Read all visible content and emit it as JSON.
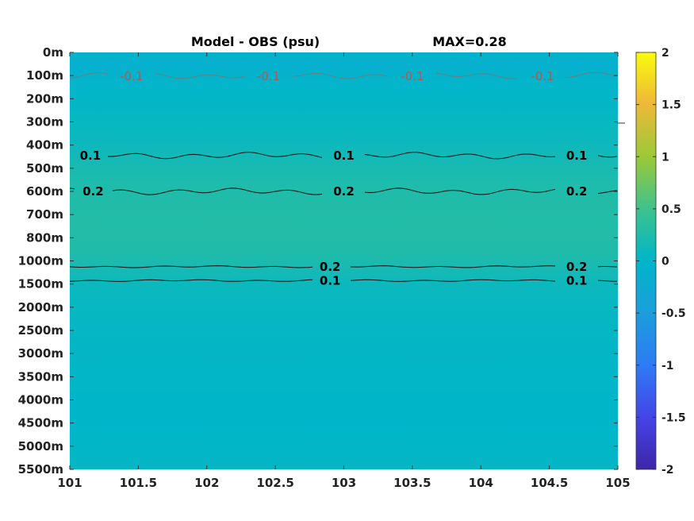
{
  "chart_data": {
    "type": "heatmap",
    "title": "Model - OBS (psu)",
    "subtitle": "MAX=0.28",
    "x": {
      "ticks": [
        101,
        101.5,
        102,
        102.5,
        103,
        103.5,
        104,
        104.5,
        105
      ],
      "tick_labels": [
        "101",
        "101.5",
        "102",
        "102.5",
        "103",
        "103.5",
        "104",
        "104.5",
        "105"
      ],
      "range": [
        101,
        105
      ]
    },
    "y": {
      "tick_labels": [
        "0m",
        "100m",
        "200m",
        "300m",
        "400m",
        "500m",
        "600m",
        "700m",
        "800m",
        "1000m",
        "1500m",
        "2000m",
        "2500m",
        "3000m",
        "3500m",
        "4000m",
        "4500m",
        "5000m",
        "5500m"
      ],
      "reversed": true
    },
    "colorbar": {
      "range": [
        -2,
        2
      ],
      "ticks": [
        2,
        1.5,
        1,
        0.5,
        0,
        -0.5,
        -1,
        -1.5,
        -2
      ],
      "tick_labels": [
        "2",
        "1.5",
        "1",
        "0.5",
        "0",
        "-0.5",
        "-1",
        "-1.5",
        "-2"
      ],
      "colormap": "parula"
    },
    "depth_profile": {
      "depth_index": [
        0,
        0.5,
        1,
        2,
        3,
        3.8,
        4.5,
        5,
        5.8,
        6.5,
        7.5,
        8.5,
        9.2,
        10,
        11,
        12,
        13,
        14,
        15,
        16,
        17,
        18
      ],
      "value": [
        -0.02,
        -0.12,
        -0.05,
        0.02,
        0.06,
        0.1,
        0.15,
        0.2,
        0.24,
        0.27,
        0.28,
        0.27,
        0.2,
        0.1,
        0.06,
        0.04,
        0.03,
        0.02,
        0.01,
        0.0,
        0.02,
        0.04
      ]
    },
    "contours": [
      {
        "level": -0.1,
        "label": "-0.1",
        "depth_index": 1.0,
        "label_x": [
          101.45,
          102.45,
          103.5,
          104.45
        ]
      },
      {
        "level": 0.1,
        "label": "0.1",
        "depth_index": 4.45,
        "label_x": [
          101.15,
          103.0,
          104.7
        ]
      },
      {
        "level": 0.2,
        "label": "0.2",
        "depth_index": 6.0,
        "label_x": [
          101.17,
          103.0,
          104.7
        ]
      },
      {
        "level": 0.2,
        "label": "0.2",
        "depth_index": 9.25,
        "label_x": [
          102.9,
          104.7
        ]
      },
      {
        "level": 0.1,
        "label": "0.1",
        "depth_index": 9.85,
        "label_x": [
          102.9,
          104.7
        ]
      }
    ]
  }
}
